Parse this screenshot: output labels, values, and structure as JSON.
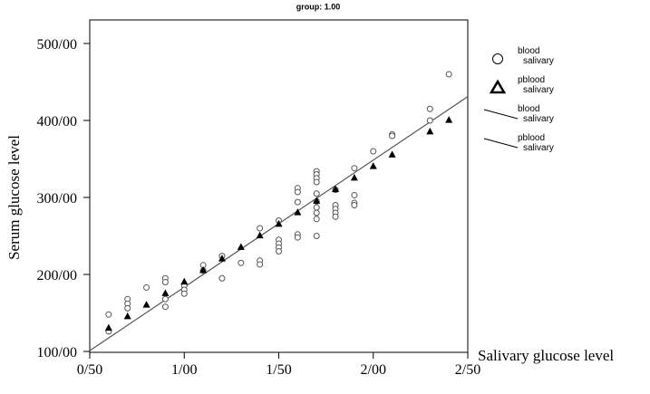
{
  "chart_data": {
    "type": "scatter",
    "title": "group: 1.00",
    "xlabel": "Salivary glucose level",
    "ylabel": "Serum glucose level",
    "xlim": [
      0.5,
      2.5
    ],
    "ylim": [
      100,
      500
    ],
    "x_ticks": [
      {
        "value": 0.5,
        "label": "0/50"
      },
      {
        "value": 1.0,
        "label": "1/00"
      },
      {
        "value": 1.5,
        "label": "1/50"
      },
      {
        "value": 2.0,
        "label": "2/00"
      },
      {
        "value": 2.5,
        "label": "2/50"
      }
    ],
    "y_ticks": [
      {
        "value": 100,
        "label": "100/00"
      },
      {
        "value": 200,
        "label": "200/00"
      },
      {
        "value": 300,
        "label": "300/00"
      },
      {
        "value": 400,
        "label": "400/00"
      },
      {
        "value": 500,
        "label": "500/00"
      }
    ],
    "grid": false,
    "legend_position": "right",
    "legend": [
      {
        "line1": "blood",
        "line2": "salivary",
        "symbol": "circle"
      },
      {
        "line1": "pblood",
        "line2": "salivary",
        "symbol": "triangle"
      },
      {
        "line1": "blood",
        "line2": "salivary",
        "symbol": "line"
      },
      {
        "line1": "pblood",
        "line2": "salivary",
        "symbol": "line"
      }
    ],
    "series": [
      {
        "symbol": "circle",
        "points": [
          [
            0.6,
            148
          ],
          [
            0.6,
            126
          ],
          [
            0.7,
            168
          ],
          [
            0.7,
            162
          ],
          [
            0.7,
            156
          ],
          [
            0.8,
            183
          ],
          [
            0.9,
            195
          ],
          [
            0.9,
            190
          ],
          [
            0.9,
            168
          ],
          [
            0.9,
            158
          ],
          [
            1.0,
            185
          ],
          [
            1.0,
            180
          ],
          [
            1.0,
            175
          ],
          [
            1.1,
            212
          ],
          [
            1.1,
            205
          ],
          [
            1.2,
            224
          ],
          [
            1.2,
            195
          ],
          [
            1.3,
            215
          ],
          [
            1.4,
            260
          ],
          [
            1.4,
            218
          ],
          [
            1.4,
            213
          ],
          [
            1.5,
            270
          ],
          [
            1.5,
            245
          ],
          [
            1.5,
            240
          ],
          [
            1.5,
            235
          ],
          [
            1.5,
            230
          ],
          [
            1.6,
            312
          ],
          [
            1.6,
            307
          ],
          [
            1.6,
            294
          ],
          [
            1.6,
            252
          ],
          [
            1.6,
            248
          ],
          [
            1.7,
            334
          ],
          [
            1.7,
            330
          ],
          [
            1.7,
            325
          ],
          [
            1.7,
            320
          ],
          [
            1.7,
            305
          ],
          [
            1.7,
            295
          ],
          [
            1.7,
            287
          ],
          [
            1.7,
            280
          ],
          [
            1.7,
            272
          ],
          [
            1.7,
            250
          ],
          [
            1.8,
            310
          ],
          [
            1.8,
            290
          ],
          [
            1.8,
            285
          ],
          [
            1.8,
            280
          ],
          [
            1.8,
            275
          ],
          [
            1.9,
            338
          ],
          [
            1.9,
            303
          ],
          [
            1.9,
            293
          ],
          [
            1.9,
            290
          ],
          [
            2.0,
            360
          ],
          [
            2.1,
            382
          ],
          [
            2.1,
            380
          ],
          [
            2.3,
            415
          ],
          [
            2.3,
            400
          ],
          [
            2.4,
            460
          ]
        ]
      },
      {
        "symbol": "triangle",
        "points": [
          [
            0.6,
            131
          ],
          [
            0.7,
            146
          ],
          [
            0.8,
            161
          ],
          [
            0.9,
            176
          ],
          [
            1.0,
            191
          ],
          [
            1.1,
            206
          ],
          [
            1.2,
            221
          ],
          [
            1.3,
            236
          ],
          [
            1.4,
            251
          ],
          [
            1.5,
            266
          ],
          [
            1.6,
            281
          ],
          [
            1.7,
            296
          ],
          [
            1.8,
            311
          ],
          [
            1.9,
            326
          ],
          [
            2.0,
            341
          ],
          [
            2.1,
            356
          ],
          [
            2.3,
            386
          ],
          [
            2.4,
            401
          ]
        ]
      },
      {
        "symbol": "line",
        "line": [
          [
            0.5,
            101
          ],
          [
            2.5,
            431
          ]
        ]
      }
    ]
  }
}
